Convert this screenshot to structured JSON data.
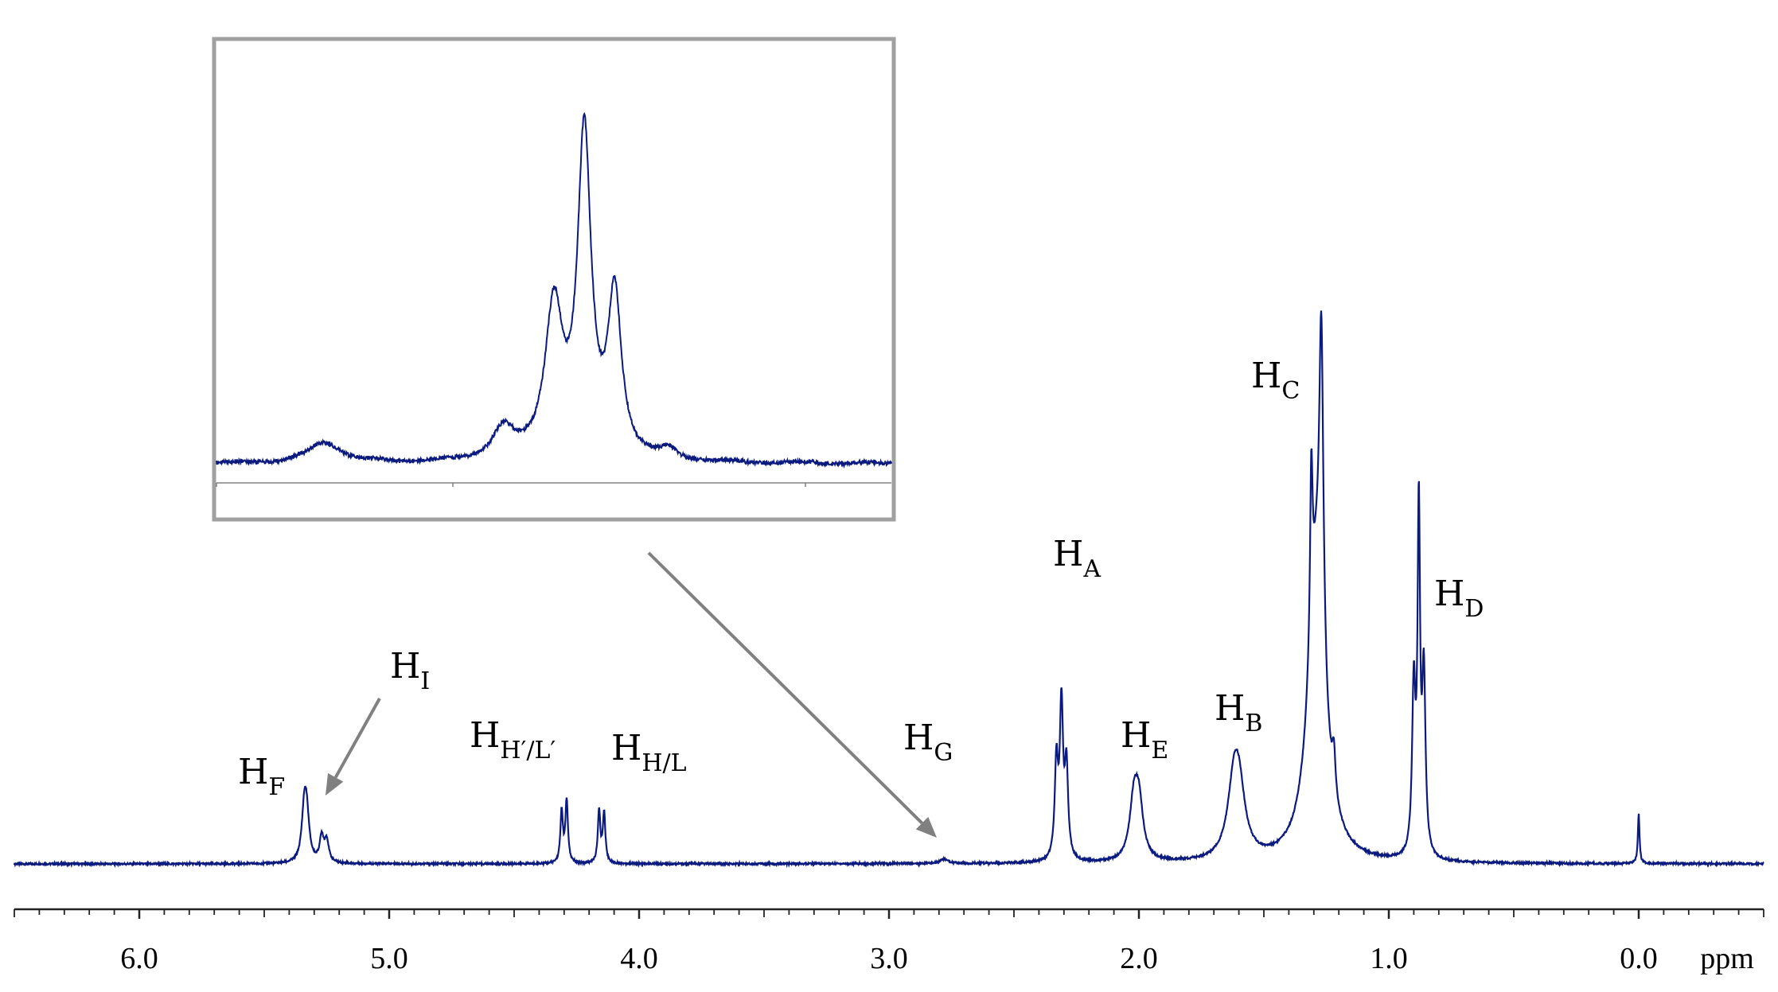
{
  "chart_data": {
    "type": "line",
    "title": "",
    "xlabel": "ppm",
    "ylabel": "",
    "xlim": [
      6.5,
      -0.5
    ],
    "x_reversed": true,
    "grid": false,
    "colors": {
      "spectrum": "#0a1a7e",
      "axis": "#222222",
      "annotation": "#808080"
    },
    "x_ticks": [
      {
        "value": 6.0,
        "label": "6.0"
      },
      {
        "value": 5.0,
        "label": "5.0"
      },
      {
        "value": 4.0,
        "label": "4.0"
      },
      {
        "value": 3.0,
        "label": "3.0"
      },
      {
        "value": 2.0,
        "label": "2.0"
      },
      {
        "value": 1.0,
        "label": "1.0"
      },
      {
        "value": 0.0,
        "label": "0.0"
      }
    ],
    "peaks": [
      {
        "ppm": 5.34,
        "height": 0.135,
        "width": 0.012
      },
      {
        "ppm": 5.33,
        "height": 0.115,
        "width": 0.012
      },
      {
        "ppm": 5.27,
        "height": 0.07,
        "width": 0.01
      },
      {
        "ppm": 5.25,
        "height": 0.06,
        "width": 0.01
      },
      {
        "ppm": 4.31,
        "height": 0.145,
        "width": 0.006
      },
      {
        "ppm": 4.29,
        "height": 0.175,
        "width": 0.006
      },
      {
        "ppm": 4.16,
        "height": 0.145,
        "width": 0.006
      },
      {
        "ppm": 4.14,
        "height": 0.14,
        "width": 0.006
      },
      {
        "ppm": 2.78,
        "height": 0.012,
        "width": 0.02
      },
      {
        "ppm": 2.33,
        "height": 0.265,
        "width": 0.008
      },
      {
        "ppm": 2.31,
        "height": 0.42,
        "width": 0.008
      },
      {
        "ppm": 2.29,
        "height": 0.25,
        "width": 0.008
      },
      {
        "ppm": 2.02,
        "height": 0.155,
        "width": 0.02
      },
      {
        "ppm": 2.0,
        "height": 0.15,
        "width": 0.02
      },
      {
        "ppm": 1.62,
        "height": 0.175,
        "width": 0.03
      },
      {
        "ppm": 1.6,
        "height": 0.165,
        "width": 0.03
      },
      {
        "ppm": 1.29,
        "height": 0.78,
        "width": 0.04
      },
      {
        "ppm": 1.31,
        "height": 0.48,
        "width": 0.006
      },
      {
        "ppm": 1.27,
        "height": 0.9,
        "width": 0.01
      },
      {
        "ppm": 1.22,
        "height": 0.12,
        "width": 0.008
      },
      {
        "ppm": 0.9,
        "height": 0.46,
        "width": 0.008
      },
      {
        "ppm": 0.88,
        "height": 0.94,
        "width": 0.006
      },
      {
        "ppm": 0.86,
        "height": 0.5,
        "width": 0.008
      },
      {
        "ppm": 0.0,
        "height": 0.14,
        "width": 0.004
      }
    ],
    "annotations": [
      {
        "id": "F",
        "base": "H",
        "sub": "F",
        "ppm": 5.34
      },
      {
        "id": "I",
        "base": "H",
        "sub": "I",
        "ppm": 5.26
      },
      {
        "id": "HpLp",
        "base": "H",
        "sub": "H′/L′",
        "ppm": 4.3
      },
      {
        "id": "HL",
        "base": "H",
        "sub": "H/L",
        "ppm": 4.15
      },
      {
        "id": "G",
        "base": "H",
        "sub": "G",
        "ppm": 2.78
      },
      {
        "id": "A",
        "base": "H",
        "sub": "A",
        "ppm": 2.31
      },
      {
        "id": "E",
        "base": "H",
        "sub": "E",
        "ppm": 2.01
      },
      {
        "id": "B",
        "base": "H",
        "sub": "B",
        "ppm": 1.61
      },
      {
        "id": "C",
        "base": "H",
        "sub": "C",
        "ppm": 1.28
      },
      {
        "id": "D",
        "base": "H",
        "sub": "D",
        "ppm": 0.88
      }
    ],
    "inset": {
      "description_of_region": "H_G",
      "peaks": [
        {
          "pos": 0.16,
          "height": 0.06,
          "width": 0.03
        },
        {
          "pos": 0.425,
          "height": 0.09,
          "width": 0.02
        },
        {
          "pos": 0.5,
          "height": 0.44,
          "width": 0.016
        },
        {
          "pos": 0.545,
          "height": 0.93,
          "width": 0.012
        },
        {
          "pos": 0.59,
          "height": 0.47,
          "width": 0.012
        },
        {
          "pos": 0.67,
          "height": 0.03,
          "width": 0.015
        }
      ]
    }
  }
}
